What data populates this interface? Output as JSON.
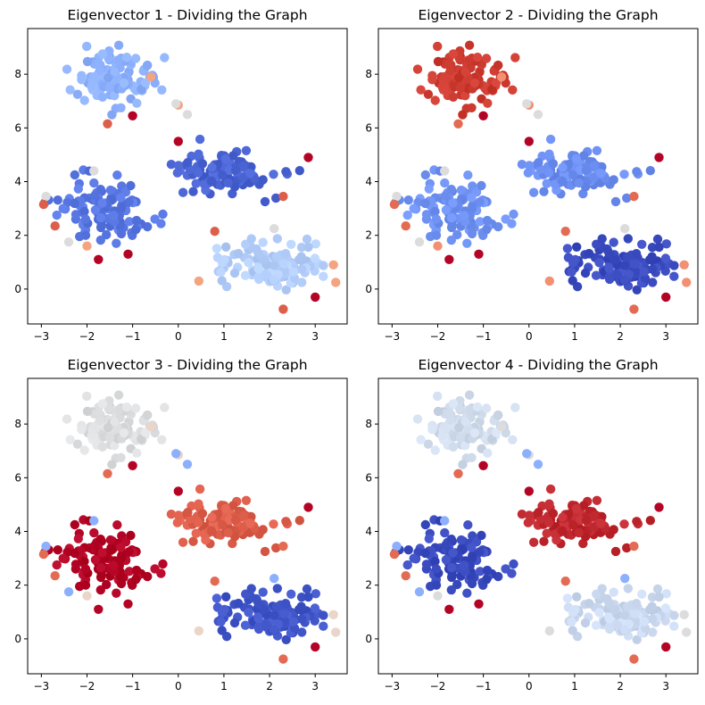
{
  "chart_data": [
    {
      "type": "scatter",
      "title": "Eigenvector 1 - Dividing the Graph",
      "xlabel": "",
      "ylabel": "",
      "xlim": [
        -3.3,
        3.7
      ],
      "ylim": [
        -1.3,
        9.7
      ],
      "xticks": [
        "-3",
        "-2",
        "-1",
        "0",
        "1",
        "2",
        "3"
      ],
      "yticks": [
        "0",
        "2",
        "4",
        "6",
        "8"
      ],
      "grid": false,
      "colormap": "coolwarm",
      "cluster_colors": [
        "#8db0fe",
        "#5977e3",
        "#4a63d3",
        "#b3cdfb"
      ],
      "outlier_colors": [
        "#b40426",
        "#dd5f4b",
        "#f3a481",
        "#dddcdc"
      ]
    },
    {
      "type": "scatter",
      "title": "Eigenvector 2 - Dividing the Graph",
      "xlabel": "",
      "ylabel": "",
      "xlim": [
        -3.3,
        3.7
      ],
      "ylim": [
        -1.3,
        9.7
      ],
      "xticks": [
        "-3",
        "-2",
        "-1",
        "0",
        "1",
        "2",
        "3"
      ],
      "yticks": [
        "0",
        "2",
        "4",
        "6",
        "8"
      ],
      "grid": false,
      "colormap": "coolwarm",
      "cluster_colors": [
        "#cc3a30",
        "#6f92f3",
        "#6b8df0",
        "#3b4cc0"
      ],
      "outlier_colors": [
        "#b40426",
        "#e36b54",
        "#f29072",
        "#dddcdc"
      ]
    },
    {
      "type": "scatter",
      "title": "Eigenvector 3 - Dividing the Graph",
      "xlabel": "",
      "ylabel": "",
      "xlim": [
        -3.3,
        3.7
      ],
      "ylim": [
        -1.3,
        9.7
      ],
      "xticks": [
        "-3",
        "-2",
        "-1",
        "0",
        "1",
        "2",
        "3"
      ],
      "yticks": [
        "0",
        "2",
        "4",
        "6",
        "8"
      ],
      "grid": false,
      "colormap": "coolwarm",
      "cluster_colors": [
        "#dbdcde",
        "#b40426",
        "#dc5d4a",
        "#4055c8"
      ],
      "outlier_colors": [
        "#b40426",
        "#e36b54",
        "#ead5c9",
        "#8db0fe"
      ]
    },
    {
      "type": "scatter",
      "title": "Eigenvector 4 - Dividing the Graph",
      "xlabel": "",
      "ylabel": "",
      "xlim": [
        -3.3,
        3.7
      ],
      "ylim": [
        -1.3,
        9.7
      ],
      "xticks": [
        "-3",
        "-2",
        "-1",
        "0",
        "1",
        "2",
        "3"
      ],
      "yticks": [
        "0",
        "2",
        "4",
        "6",
        "8"
      ],
      "grid": false,
      "colormap": "coolwarm",
      "cluster_colors": [
        "#cfdaea",
        "#3b4cc0",
        "#c0282f",
        "#cad8ef"
      ],
      "outlier_colors": [
        "#b40426",
        "#e36b54",
        "#dddcdc",
        "#8db0fe"
      ]
    }
  ],
  "clusters": [
    {
      "center": [
        -1.35,
        7.85
      ],
      "spread": [
        0.42,
        0.52
      ],
      "count": 110
    },
    {
      "center": [
        -1.6,
        2.95
      ],
      "spread": [
        0.55,
        0.55
      ],
      "count": 110
    },
    {
      "center": [
        0.95,
        4.35
      ],
      "spread": [
        0.55,
        0.42
      ],
      "count": 110
    },
    {
      "center": [
        1.95,
        0.9
      ],
      "spread": [
        0.55,
        0.42
      ],
      "count": 110
    }
  ],
  "outliers": [
    [
      -1.75,
      1.1
    ],
    [
      2.3,
      -0.75
    ],
    [
      3.45,
      0.25
    ],
    [
      0.2,
      6.5
    ],
    [
      -1.1,
      1.3
    ],
    [
      -1.55,
      6.15
    ],
    [
      0.0,
      6.85
    ],
    [
      -2.9,
      3.45
    ],
    [
      3.0,
      -0.3
    ],
    [
      2.3,
      3.45
    ],
    [
      0.45,
      0.3
    ],
    [
      -2.4,
      1.75
    ],
    [
      0.0,
      5.5
    ],
    [
      -2.95,
      3.15
    ],
    [
      3.4,
      0.9
    ],
    [
      -0.05,
      6.9
    ],
    [
      -1.0,
      6.45
    ],
    [
      0.8,
      2.15
    ],
    [
      -2.0,
      1.6
    ],
    [
      2.1,
      2.25
    ],
    [
      2.85,
      4.9
    ],
    [
      -2.7,
      2.35
    ],
    [
      -0.6,
      7.9
    ],
    [
      -1.85,
      4.4
    ]
  ]
}
